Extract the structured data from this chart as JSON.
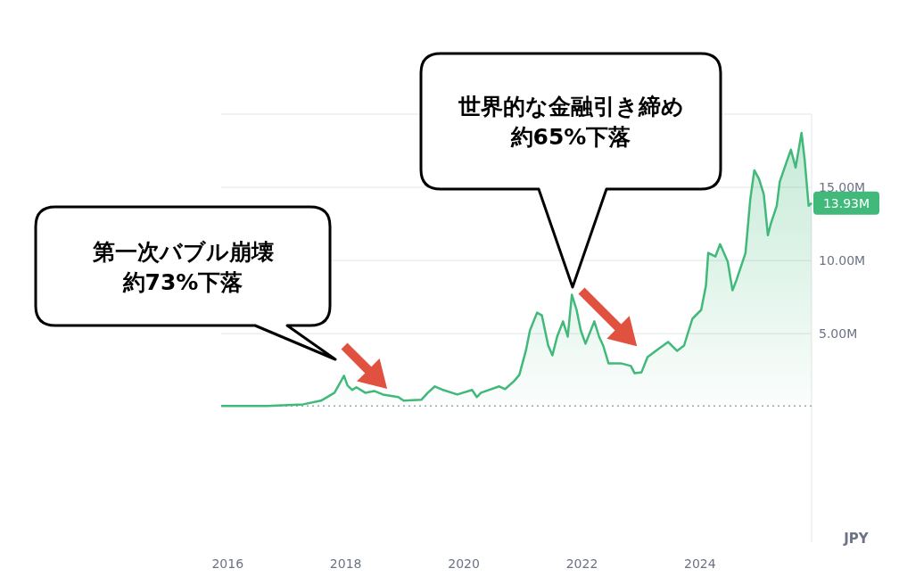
{
  "chart_data": {
    "type": "area",
    "x": [
      2015.89,
      2016.67,
      2017.28,
      2017.58,
      2017.81,
      2017.97,
      2018.03,
      2018.11,
      2018.18,
      2018.33,
      2018.48,
      2018.63,
      2018.89,
      2018.98,
      2019.28,
      2019.39,
      2019.51,
      2019.65,
      2019.89,
      2020.14,
      2020.22,
      2020.29,
      2020.6,
      2020.7,
      2020.85,
      2020.94,
      2021.05,
      2021.12,
      2021.24,
      2021.32,
      2021.43,
      2021.5,
      2021.58,
      2021.68,
      2021.76,
      2021.83,
      2021.91,
      2021.98,
      2022.06,
      2022.21,
      2022.29,
      2022.36,
      2022.45,
      2022.66,
      2022.83,
      2022.89,
      2023.01,
      2023.11,
      2023.27,
      2023.46,
      2023.61,
      2023.73,
      2023.87,
      2024.02,
      2024.1,
      2024.14,
      2024.26,
      2024.34,
      2024.47,
      2024.55,
      2024.62,
      2024.77,
      2024.85,
      2024.92,
      2025.0,
      2025.08,
      2025.15,
      2025.2,
      2025.3,
      2025.35,
      2025.47,
      2025.54,
      2025.62,
      2025.72,
      2025.77,
      2025.84,
      2025.89
    ],
    "series": [
      {
        "color": "#41b97a",
        "values": [
          60000,
          60000,
          180000,
          430000,
          970000,
          2130000,
          1460000,
          1160000,
          1340000,
          970000,
          1090000,
          850000,
          670000,
          430000,
          490000,
          970000,
          1400000,
          1160000,
          850000,
          1160000,
          670000,
          970000,
          1400000,
          1220000,
          1760000,
          2190000,
          3830000,
          5230000,
          6440000,
          6260000,
          4190000,
          3530000,
          4800000,
          5840000,
          4800000,
          7660000,
          6630000,
          5230000,
          4320000,
          5840000,
          4800000,
          4190000,
          2980000,
          2980000,
          2800000,
          2310000,
          2370000,
          3400000,
          3890000,
          4440000,
          3830000,
          4190000,
          6020000,
          6630000,
          8270000,
          10520000,
          10270000,
          11120000,
          9910000,
          7960000,
          8690000,
          10520000,
          14160000,
          16170000,
          15560000,
          14530000,
          11730000,
          12520000,
          13740000,
          15380000,
          16780000,
          17570000,
          16350000,
          18720000,
          16960000,
          13740000,
          13930000
        ]
      }
    ],
    "xlim": [
      2015.89,
      2025.89
    ],
    "xticks": [
      2016,
      2018,
      2020,
      2022,
      2024
    ],
    "ylim": [
      -9240000,
      20000000
    ],
    "yticks": [
      {
        "value": 5000000,
        "label": "5.00M"
      },
      {
        "value": 10000000,
        "label": "10.00M"
      },
      {
        "value": 15000000,
        "label": "15.00M"
      },
      {
        "value": 20000000,
        "label": null
      }
    ],
    "ylabel": "JPY",
    "grid": "y",
    "ref_lines": [
      {
        "axis": "y",
        "value": 60000,
        "color": "#a0a4ad",
        "line_style": "dotted"
      }
    ],
    "annotations": [
      "第一次バブル崩壊",
      "約73%下落",
      "世界的な金融引き締め",
      "約65%下落",
      {
        "text": "13.93M",
        "x": 2025.89,
        "y": 13930000
      }
    ]
  }
}
